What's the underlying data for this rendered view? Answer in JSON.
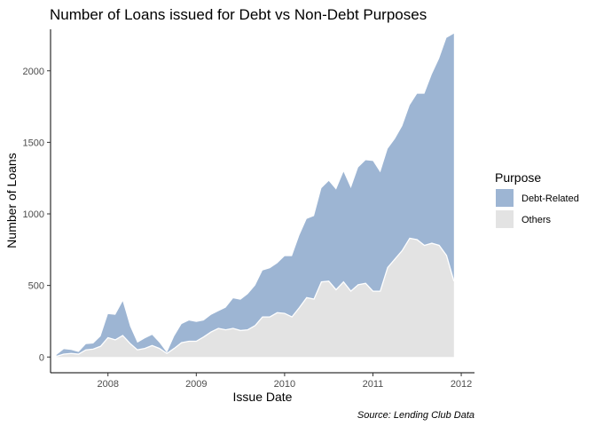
{
  "chart_data": {
    "type": "area",
    "stacked": true,
    "title": "Number of Loans issued for Debt vs Non-Debt Purposes",
    "xlabel": "Issue Date",
    "ylabel": "Number of Loans",
    "caption": "Source: Lending Club Data",
    "xlim": [
      2007.35,
      2012.15
    ],
    "ylim": [
      -110,
      2290
    ],
    "x_ticks": [
      2008,
      2009,
      2010,
      2011,
      2012
    ],
    "x_tick_labels": [
      "2008",
      "2009",
      "2010",
      "2011",
      "2012"
    ],
    "y_ticks": [
      0,
      500,
      1000,
      1500,
      2000
    ],
    "y_tick_labels": [
      "0",
      "500",
      "1000",
      "1500",
      "2000"
    ],
    "grid": false,
    "legend": {
      "title": "Purpose",
      "placement": "right"
    },
    "x": [
      2007.417,
      2007.5,
      2007.583,
      2007.667,
      2007.75,
      2007.833,
      2007.917,
      2008.0,
      2008.083,
      2008.167,
      2008.25,
      2008.333,
      2008.417,
      2008.5,
      2008.583,
      2008.667,
      2008.75,
      2008.833,
      2008.917,
      2009.0,
      2009.083,
      2009.167,
      2009.25,
      2009.333,
      2009.417,
      2009.5,
      2009.583,
      2009.667,
      2009.75,
      2009.833,
      2009.917,
      2010.0,
      2010.083,
      2010.167,
      2010.25,
      2010.333,
      2010.417,
      2010.5,
      2010.583,
      2010.667,
      2010.75,
      2010.833,
      2010.917,
      2011.0,
      2011.083,
      2011.167,
      2011.25,
      2011.333,
      2011.417,
      2011.5,
      2011.583,
      2011.667,
      2011.75,
      2011.833,
      2011.917
    ],
    "series": [
      {
        "name": "Debt-Related",
        "color": "#9db5d3",
        "values": [
          10,
          35,
          25,
          15,
          40,
          40,
          70,
          165,
          175,
          240,
          120,
          50,
          70,
          75,
          40,
          5,
          85,
          130,
          145,
          135,
          115,
          120,
          120,
          155,
          210,
          215,
          250,
          280,
          325,
          340,
          345,
          400,
          425,
          505,
          550,
          580,
          655,
          700,
          700,
          770,
          720,
          820,
          860,
          910,
          830,
          830,
          840,
          870,
          930,
          1020,
          1060,
          1180,
          1305,
          1520,
          1730
        ]
      },
      {
        "name": "Others",
        "color": "#e3e3e3",
        "values": [
          5,
          20,
          25,
          20,
          50,
          55,
          75,
          135,
          120,
          150,
          95,
          50,
          60,
          80,
          60,
          25,
          60,
          100,
          110,
          110,
          140,
          175,
          200,
          190,
          200,
          185,
          190,
          220,
          280,
          280,
          310,
          305,
          280,
          345,
          415,
          405,
          525,
          530,
          470,
          525,
          460,
          505,
          515,
          460,
          460,
          625,
          685,
          745,
          830,
          820,
          780,
          795,
          780,
          710,
          530
        ]
      }
    ]
  }
}
